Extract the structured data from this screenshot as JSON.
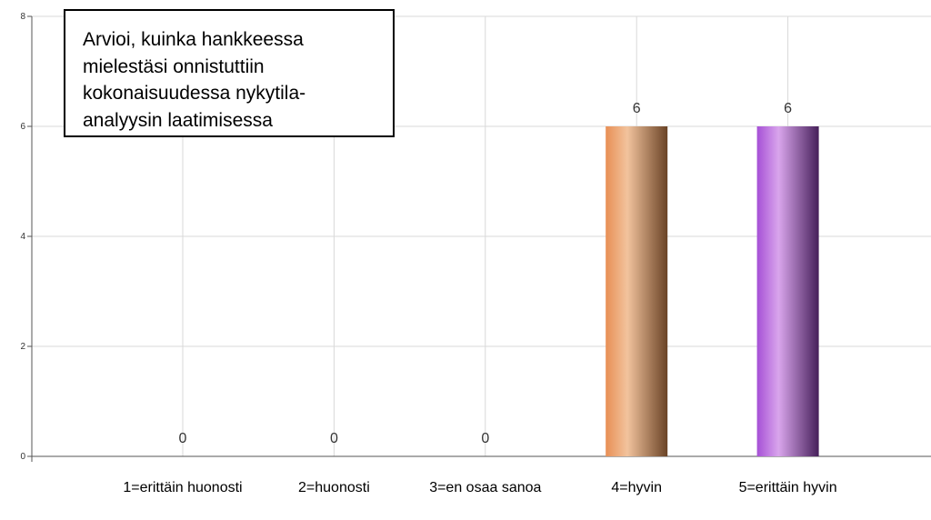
{
  "chart_data": {
    "type": "bar",
    "title_lines": [
      "Arvioi, kuinka hankkeessa",
      "mielestäsi onnistuttiin",
      "kokonaisuudessa nykytila-",
      "analyysin laatimisessa"
    ],
    "categories": [
      "1=erittäin huonosti",
      "2=huonosti",
      "3=en osaa sanoa",
      "4=hyvin",
      "5=erittäin hyvin"
    ],
    "values": [
      0,
      0,
      0,
      6,
      6
    ],
    "colors": [
      [
        "#e88f55",
        "#f2c39d",
        "#6a4326"
      ],
      [
        "#e88f55",
        "#f2c39d",
        "#6a4326"
      ],
      [
        "#e88f55",
        "#f2c39d",
        "#6a4326"
      ],
      [
        "#e88f55",
        "#f2c39d",
        "#6a4326"
      ],
      [
        "#a650d6",
        "#d9a5ec",
        "#46205a"
      ]
    ],
    "ylim": [
      0,
      8
    ],
    "yticks": [
      0,
      2,
      4,
      6,
      8
    ],
    "grid": true
  }
}
